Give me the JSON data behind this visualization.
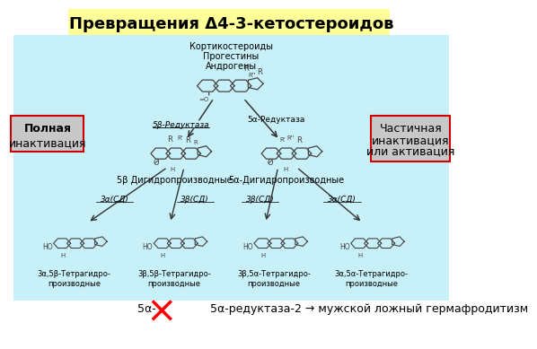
{
  "title": "Превращения Δ4-3-кетостероидов",
  "title_bg": "#FFFF99",
  "main_bg": "#C8F0F8",
  "fig_bg": "#FFFFFF",
  "left_box_text_line1": "Полная",
  "left_box_text_line2": "инактивация",
  "left_box_bg": "#C8C8C8",
  "left_box_border": "#CC0000",
  "right_box_text": "Частичная\nинактивация\nили активация",
  "right_box_bg": "#C8C8C8",
  "right_box_border": "#CC0000",
  "bottom_text": "5α-редуктаза-2 → мужской ложный гермафродитизм",
  "cross_color": "#FF0000",
  "top_labels": [
    "Кортикостероиды",
    "Прогестины",
    "Андрогены"
  ],
  "left_arrow_label": "5β-Редуктаза",
  "right_arrow_label": "5α-Редуктаза",
  "mid_left_label": "5β Дигидропроизводные",
  "mid_right_label": "5α-Дигидропроизводные",
  "enzyme_labels": [
    "3α(СД)",
    "3β(СД)",
    "3β(СД)",
    "3α(СД)"
  ],
  "bottom_mol_labels": [
    "3α,5β-Тетрагидро-\nпроизводные",
    "3β,5β-Тетрагидро-\nпроизводные",
    "3β,5α-Тетрагидро-\nпроизводные",
    "3α,5α-Тетрагидро-\nпроизводные"
  ],
  "steroid_color": "#444444",
  "arrow_color": "#333333"
}
